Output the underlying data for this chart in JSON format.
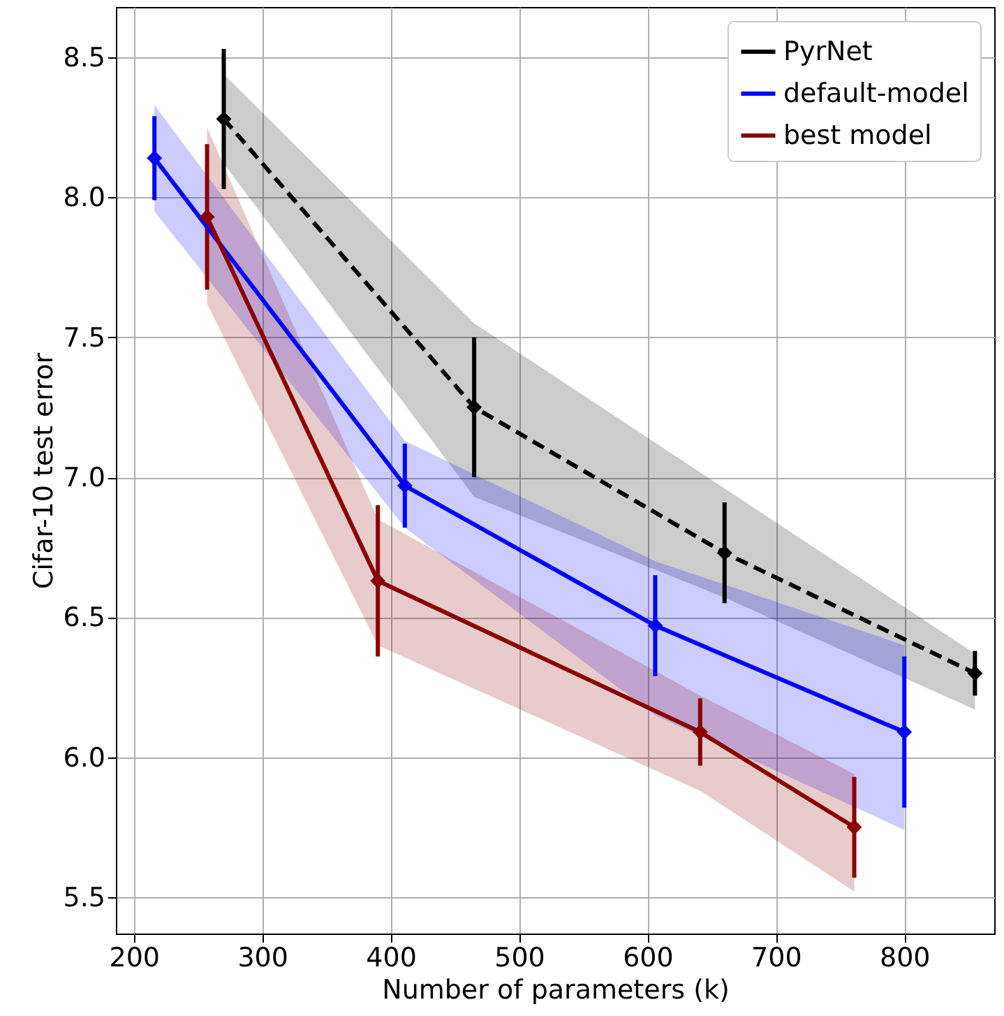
{
  "chart_data": {
    "type": "line",
    "xlabel": "Number of parameters (k)",
    "ylabel": "Cifar-10 test error",
    "xlim": [
      186,
      870
    ],
    "ylim": [
      5.37,
      8.68
    ],
    "xticks": [
      200,
      300,
      400,
      500,
      600,
      700,
      800
    ],
    "yticks": [
      5.5,
      {
        "value": 6,
        "label": "6.0"
      },
      6.5,
      {
        "value": 7,
        "label": "7.0"
      },
      7.5,
      {
        "value": 8,
        "label": "8.0"
      },
      8.5
    ],
    "grid": true,
    "legend": "top right",
    "marker": "diamond",
    "series": [
      {
        "name": "PyrNet",
        "color": "#000000",
        "line_style": "dashed",
        "x": [
          270,
          465,
          660,
          855
        ],
        "values": [
          8.28,
          7.25,
          6.73,
          6.3
        ],
        "errors": [
          0.25,
          0.25,
          0.18,
          0.08
        ],
        "lower": [
          8.12,
          6.93,
          6.57,
          6.17
        ],
        "upper": [
          8.44,
          7.55,
          6.96,
          6.37
        ]
      },
      {
        "name": "default-model",
        "color": "#0000ff",
        "line_style": "solid",
        "x": [
          216,
          411,
          606,
          800
        ],
        "values": [
          8.14,
          6.97,
          6.47,
          6.09
        ],
        "errors": [
          0.15,
          0.15,
          0.18,
          0.27
        ],
        "lower": [
          7.95,
          6.82,
          6.15,
          5.74
        ],
        "upper": [
          8.33,
          7.13,
          6.7,
          6.4
        ]
      },
      {
        "name": "best model",
        "color": "#8b0000",
        "line_style": "solid",
        "x": [
          257,
          390,
          641,
          761
        ],
        "values": [
          7.93,
          6.63,
          6.09,
          5.75
        ],
        "errors": [
          0.26,
          0.27,
          0.12,
          0.18
        ],
        "lower": [
          7.62,
          6.4,
          5.88,
          5.52
        ],
        "upper": [
          8.25,
          6.85,
          6.22,
          5.94
        ]
      }
    ]
  }
}
